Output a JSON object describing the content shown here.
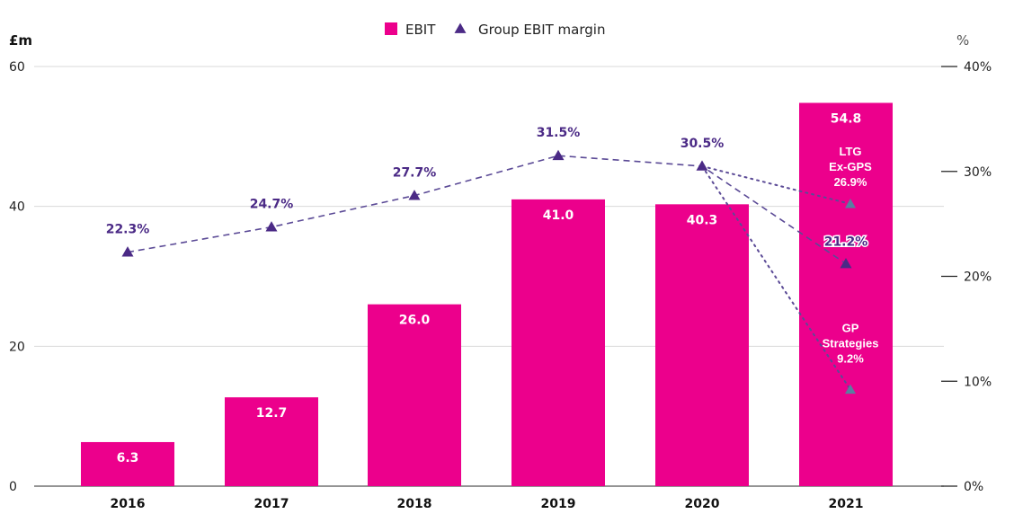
{
  "chart_data": {
    "type": "bar",
    "categories": [
      "2016",
      "2017",
      "2018",
      "2019",
      "2020",
      "2021"
    ],
    "series": [
      {
        "name": "EBIT",
        "type": "bar",
        "axis": "left",
        "color": "#ec008c",
        "values": [
          6.3,
          12.7,
          26.0,
          41.0,
          40.3,
          54.8
        ],
        "labels": [
          "6.3",
          "12.7",
          "26.0",
          "41.0",
          "40.3",
          "54.8"
        ]
      },
      {
        "name": "Group EBIT margin",
        "type": "line",
        "axis": "right",
        "color": "#4b2a86",
        "line_style": "dashed",
        "values": [
          22.3,
          24.7,
          27.7,
          31.5,
          30.5,
          21.2
        ],
        "labels": [
          "22.3%",
          "24.7%",
          "27.7%",
          "31.5%",
          "30.5%",
          "21.2%"
        ]
      }
    ],
    "extra_points": [
      {
        "category": "2021",
        "value": 26.9,
        "label_lines": [
          "LTG",
          "Ex-GPS",
          "26.9%"
        ],
        "line_style": "dotted",
        "from": "2020",
        "color": "#5a7ea0"
      },
      {
        "category": "2021",
        "value": 9.2,
        "label_lines": [
          "GP",
          "Strategies",
          "9.2%"
        ],
        "line_style": "dotted",
        "from": "2020",
        "color": "#5a7ea0"
      }
    ],
    "left_axis": {
      "unit": "£m",
      "ylim": [
        0,
        60
      ],
      "ticks": [
        0,
        20,
        40,
        60
      ],
      "tick_labels": [
        "0",
        "20",
        "40",
        "60"
      ]
    },
    "right_axis": {
      "unit": "%",
      "ylim": [
        0,
        40
      ],
      "ticks": [
        0,
        10,
        20,
        30,
        40
      ],
      "tick_labels": [
        "0%",
        "10%",
        "20%",
        "30%",
        "40%"
      ]
    },
    "legend": {
      "position": "top-center",
      "items": [
        {
          "label": "EBIT",
          "marker": "square",
          "color": "#ec008c"
        },
        {
          "label": "Group EBIT margin",
          "marker": "triangle",
          "color": "#4b2a86"
        }
      ]
    },
    "grid": true,
    "gridline_color": "#d9d9d9"
  }
}
